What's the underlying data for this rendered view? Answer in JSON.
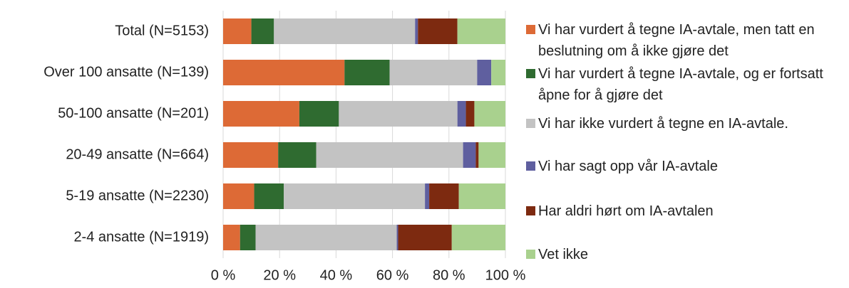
{
  "chart_data": {
    "type": "stacked_barh",
    "categories": [
      "Total (N=5153)",
      "Over 100 ansatte (N=139)",
      "50-100 ansatte (N=201)",
      "20-49 ansatte (N=664)",
      "5-19 ansatte (N=2230)",
      "2-4 ansatte (N=1919)"
    ],
    "series": [
      {
        "name": "Vi har vurdert å tegne IA-avtale, men tatt en beslutning om å ikke gjøre det",
        "color": "#dd6a36",
        "values": [
          10,
          43,
          27,
          19.5,
          11,
          6
        ]
      },
      {
        "name": "Vi har vurdert å tegne IA-avtale, og er fortsatt åpne for å gjøre det",
        "color": "#2f6b30",
        "values": [
          8,
          16,
          14,
          13.5,
          10.5,
          5.5
        ]
      },
      {
        "name": "Vi har ikke vurdert å tegne en IA-avtale.",
        "color": "#c3c3c3",
        "values": [
          50,
          31,
          42,
          52,
          50,
          50
        ]
      },
      {
        "name": "Vi har sagt opp vår IA-avtale",
        "color": "#5f5f9f",
        "values": [
          1,
          5,
          3,
          4.5,
          1.5,
          0.5
        ]
      },
      {
        "name": "Har aldri hørt om IA-avtalen",
        "color": "#7d2a10",
        "values": [
          14,
          0,
          3,
          1,
          10.5,
          19
        ]
      },
      {
        "name": "Vet ikke",
        "color": "#a9d18e",
        "values": [
          17,
          5,
          11,
          9.5,
          16.5,
          19
        ]
      }
    ],
    "xlim": [
      0,
      100
    ],
    "xticks": [
      {
        "value": 0,
        "label": "0 %"
      },
      {
        "value": 20,
        "label": "20 %"
      },
      {
        "value": 40,
        "label": "40 %"
      },
      {
        "value": 60,
        "label": "60 %"
      },
      {
        "value": 80,
        "label": "80 %"
      },
      {
        "value": 100,
        "label": "100 %"
      }
    ],
    "grid": true
  }
}
